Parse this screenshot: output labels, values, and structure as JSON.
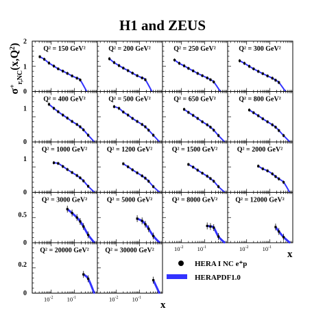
{
  "chart_data": {
    "type": "scatter",
    "title": "H1 and ZEUS",
    "xlabel": "x",
    "ylabel": "σ⁺r,NC(x,Q²)",
    "x_scale": "log",
    "xlim": [
      0.0015,
      1.0
    ],
    "ylims": [
      [
        0,
        2
      ],
      [
        0,
        1.5
      ],
      [
        0,
        1.5
      ],
      [
        0,
        0.9
      ],
      [
        0,
        0.35
      ]
    ],
    "y_ticks": [
      [
        "1",
        "2"
      ],
      [
        "1"
      ],
      [
        "1"
      ],
      [
        "0.5"
      ],
      [
        "0.2"
      ]
    ],
    "x_tick_labels": [
      {
        "base": "10",
        "exp": "-2",
        "x": 0.01
      },
      {
        "base": "10",
        "exp": "-1",
        "x": 0.1
      }
    ],
    "legend": {
      "placement": "bottom-right",
      "entries": [
        {
          "marker": "filled-circle",
          "label": "HERA I NC e⁺p"
        },
        {
          "marker": "blue-band",
          "label": "HERAPDF1.0"
        }
      ]
    },
    "colors": {
      "band": "#3333ff",
      "points": "#000000"
    },
    "panels": [
      {
        "q2": "Q² = 150 GeV²",
        "x": [
          0.0032,
          0.005,
          0.008,
          0.013,
          0.02,
          0.032,
          0.05,
          0.08,
          0.13,
          0.18
        ],
        "y": [
          1.38,
          1.28,
          1.13,
          1.01,
          0.9,
          0.81,
          0.72,
          0.62,
          0.53,
          0.46
        ]
      },
      {
        "q2": "Q² = 200 GeV²",
        "x": [
          0.005,
          0.008,
          0.013,
          0.02,
          0.032,
          0.05,
          0.08,
          0.13,
          0.18
        ],
        "y": [
          1.3,
          1.15,
          1.03,
          0.93,
          0.83,
          0.73,
          0.63,
          0.54,
          0.47
        ]
      },
      {
        "q2": "Q² = 250 GeV²",
        "x": [
          0.005,
          0.008,
          0.013,
          0.02,
          0.032,
          0.05,
          0.08,
          0.13,
          0.18,
          0.25
        ],
        "y": [
          1.25,
          1.12,
          1.02,
          0.92,
          0.82,
          0.72,
          0.63,
          0.54,
          0.47,
          0.38
        ]
      },
      {
        "q2": "Q² = 300 GeV²",
        "x": [
          0.005,
          0.008,
          0.013,
          0.02,
          0.032,
          0.05,
          0.08,
          0.13,
          0.18,
          0.25
        ],
        "y": [
          1.22,
          1.12,
          1.0,
          0.9,
          0.8,
          0.71,
          0.62,
          0.53,
          0.45,
          0.36
        ]
      },
      {
        "q2": "Q² = 400 GeV²",
        "x": [
          0.008,
          0.013,
          0.02,
          0.032,
          0.05,
          0.08,
          0.13,
          0.18,
          0.25,
          0.4
        ],
        "y": [
          1.12,
          1.0,
          0.9,
          0.8,
          0.71,
          0.61,
          0.52,
          0.45,
          0.36,
          0.2
        ]
      },
      {
        "q2": "Q² = 500 GeV²",
        "x": [
          0.008,
          0.013,
          0.02,
          0.032,
          0.05,
          0.08,
          0.13,
          0.18,
          0.25,
          0.4
        ],
        "y": [
          1.05,
          1.0,
          0.89,
          0.8,
          0.7,
          0.61,
          0.52,
          0.45,
          0.35,
          0.2
        ]
      },
      {
        "q2": "Q² = 650 GeV²",
        "x": [
          0.013,
          0.02,
          0.032,
          0.05,
          0.08,
          0.13,
          0.18,
          0.25,
          0.4
        ],
        "y": [
          0.97,
          0.88,
          0.79,
          0.7,
          0.6,
          0.51,
          0.44,
          0.35,
          0.19
        ]
      },
      {
        "q2": "Q² = 800 GeV²",
        "x": [
          0.013,
          0.02,
          0.032,
          0.05,
          0.08,
          0.13,
          0.18,
          0.25,
          0.4
        ],
        "y": [
          0.95,
          0.87,
          0.78,
          0.69,
          0.6,
          0.51,
          0.44,
          0.34,
          0.19
        ]
      },
      {
        "q2": "Q² = 1000 GeV²",
        "x": [
          0.013,
          0.02,
          0.032,
          0.05,
          0.08,
          0.13,
          0.18,
          0.25,
          0.4
        ],
        "y": [
          0.88,
          0.86,
          0.77,
          0.68,
          0.59,
          0.5,
          0.43,
          0.34,
          0.18
        ]
      },
      {
        "q2": "Q² = 1200 GeV²",
        "x": [
          0.02,
          0.032,
          0.05,
          0.08,
          0.13,
          0.18,
          0.25,
          0.4
        ],
        "y": [
          0.85,
          0.76,
          0.67,
          0.58,
          0.49,
          0.42,
          0.33,
          0.17
        ]
      },
      {
        "q2": "Q² = 1500 GeV²",
        "x": [
          0.02,
          0.032,
          0.05,
          0.08,
          0.13,
          0.18,
          0.25,
          0.4
        ],
        "y": [
          0.83,
          0.75,
          0.66,
          0.57,
          0.48,
          0.41,
          0.33,
          0.17
        ]
      },
      {
        "q2": "Q² = 2000 GeV²",
        "x": [
          0.032,
          0.05,
          0.08,
          0.13,
          0.18,
          0.25,
          0.4
        ],
        "y": [
          0.78,
          0.7,
          0.64,
          0.55,
          0.47,
          0.4,
          0.3
        ]
      },
      {
        "q2": "Q² = 3000 GeV²",
        "x": [
          0.05,
          0.08,
          0.13,
          0.18,
          0.25,
          0.4
        ],
        "y": [
          0.6,
          0.53,
          0.45,
          0.38,
          0.29,
          0.14
        ]
      },
      {
        "q2": "Q² = 5000 GeV²",
        "x": [
          0.08,
          0.13,
          0.18,
          0.25,
          0.4
        ],
        "y": [
          0.43,
          0.39,
          0.33,
          0.25,
          0.12
        ]
      },
      {
        "q2": "Q² = 8000 GeV²",
        "x": [
          0.13,
          0.18,
          0.25,
          0.4
        ],
        "y": [
          0.3,
          0.29,
          0.27,
          0.11
        ]
      },
      {
        "q2": "Q² = 12000 GeV²",
        "x": [
          0.18,
          0.25,
          0.4
        ],
        "y": [
          0.28,
          0.2,
          0.1
        ]
      },
      {
        "q2": "Q² = 20000 GeV²",
        "x": [
          0.25,
          0.4
        ],
        "y": [
          0.13,
          0.1
        ]
      },
      {
        "q2": "Q² = 30000 GeV²",
        "x": [
          0.4
        ],
        "y": [
          0.09
        ]
      }
    ]
  }
}
